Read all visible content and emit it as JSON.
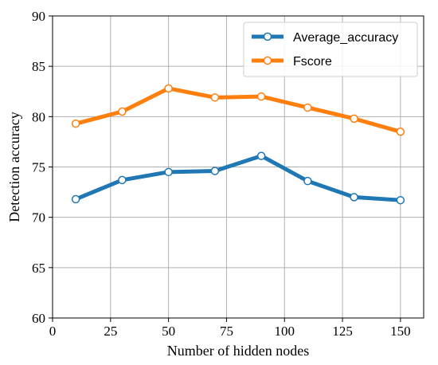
{
  "chart_data": {
    "type": "line",
    "title": "",
    "xlabel": "Number of hidden nodes",
    "ylabel": "Detection accuracy",
    "xlim": [
      0,
      160
    ],
    "ylim": [
      60,
      90
    ],
    "xticks": [
      0,
      25,
      50,
      75,
      100,
      125,
      150
    ],
    "yticks": [
      60,
      65,
      70,
      75,
      80,
      85,
      90
    ],
    "grid": true,
    "legend_position": "top-right",
    "x": [
      10,
      30,
      50,
      70,
      90,
      110,
      130,
      150
    ],
    "series": [
      {
        "name": "Average_accuracy",
        "color": "#1f77b4",
        "values": [
          71.8,
          73.7,
          74.5,
          74.6,
          76.1,
          73.6,
          72.0,
          71.7
        ]
      },
      {
        "name": "Fscore",
        "color": "#ff7f0e",
        "values": [
          79.3,
          80.5,
          82.8,
          81.9,
          82.0,
          80.9,
          79.8,
          78.5
        ]
      }
    ]
  }
}
